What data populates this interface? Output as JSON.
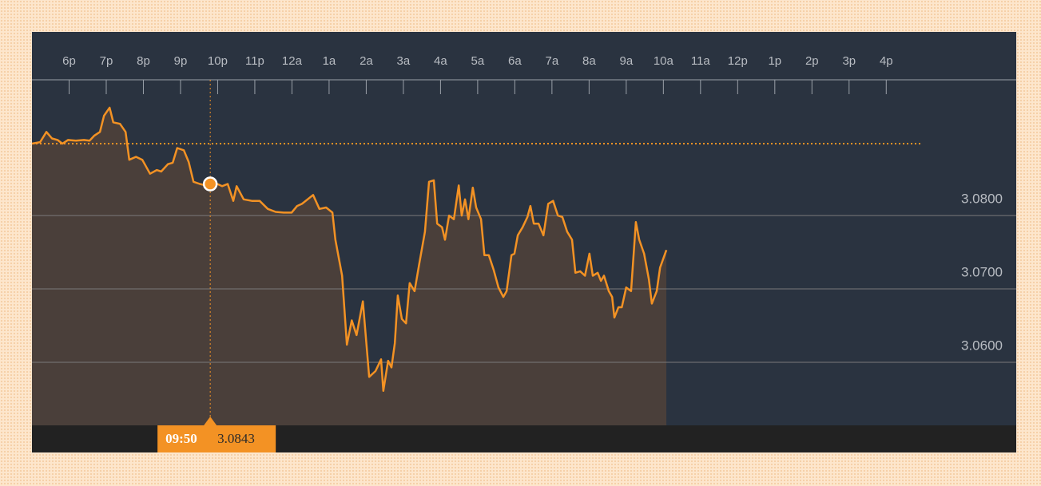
{
  "chart_data": {
    "type": "line",
    "color": "#f39224",
    "fill": "#4a3f3a",
    "xlim": [
      17,
      43.5
    ],
    "ylim": [
      3.0514,
      3.0985
    ],
    "xticks": [
      {
        "value": 18,
        "label": "6p"
      },
      {
        "value": 19,
        "label": "7p"
      },
      {
        "value": 20,
        "label": "8p"
      },
      {
        "value": 21,
        "label": "9p"
      },
      {
        "value": 22,
        "label": "10p"
      },
      {
        "value": 23,
        "label": "11p"
      },
      {
        "value": 24,
        "label": "12a"
      },
      {
        "value": 25,
        "label": "1a"
      },
      {
        "value": 26,
        "label": "2a"
      },
      {
        "value": 27,
        "label": "3a"
      },
      {
        "value": 28,
        "label": "4a"
      },
      {
        "value": 29,
        "label": "5a"
      },
      {
        "value": 30,
        "label": "6a"
      },
      {
        "value": 31,
        "label": "7a"
      },
      {
        "value": 32,
        "label": "8a"
      },
      {
        "value": 33,
        "label": "9a"
      },
      {
        "value": 34,
        "label": "10a"
      },
      {
        "value": 35,
        "label": "11a"
      },
      {
        "value": 36,
        "label": "12p"
      },
      {
        "value": 37,
        "label": "1p"
      },
      {
        "value": 38,
        "label": "2p"
      },
      {
        "value": 39,
        "label": "3p"
      },
      {
        "value": 40,
        "label": "4p"
      }
    ],
    "yticks": [
      {
        "value": 3.06,
        "label": "3.0600"
      },
      {
        "value": 3.07,
        "label": "3.0700"
      },
      {
        "value": 3.08,
        "label": "3.0800"
      }
    ],
    "reference_line": 3.0898,
    "highlight": {
      "label": "09:50",
      "x": 21.8,
      "value": 3.0843
    },
    "x": [
      17.0,
      17.22,
      17.39,
      17.54,
      17.69,
      17.82,
      17.97,
      18.18,
      18.4,
      18.55,
      18.68,
      18.83,
      18.94,
      19.09,
      19.19,
      19.37,
      19.52,
      19.62,
      19.8,
      19.97,
      20.18,
      20.36,
      20.48,
      20.66,
      20.79,
      20.91,
      21.09,
      21.22,
      21.35,
      21.52,
      21.69,
      21.8,
      21.95,
      22.12,
      22.27,
      22.42,
      22.51,
      22.7,
      22.92,
      23.13,
      23.35,
      23.56,
      23.78,
      23.99,
      24.14,
      24.27,
      24.42,
      24.57,
      24.74,
      24.92,
      25.09,
      25.17,
      25.35,
      25.48,
      25.61,
      25.74,
      25.91,
      26.08,
      26.25,
      26.4,
      26.46,
      26.59,
      26.68,
      26.77,
      26.85,
      26.96,
      27.07,
      27.17,
      27.3,
      27.43,
      27.58,
      27.69,
      27.82,
      27.91,
      28.04,
      28.12,
      28.23,
      28.36,
      28.49,
      28.57,
      28.66,
      28.75,
      28.87,
      28.96,
      29.09,
      29.18,
      29.3,
      29.43,
      29.56,
      29.69,
      29.78,
      29.91,
      29.99,
      30.08,
      30.21,
      30.34,
      30.42,
      30.51,
      30.64,
      30.77,
      30.9,
      31.03,
      31.16,
      31.28,
      31.41,
      31.54,
      31.63,
      31.76,
      31.89,
      32.01,
      32.1,
      32.23,
      32.32,
      32.4,
      32.53,
      32.62,
      32.68,
      32.79,
      32.88,
      33.0,
      33.13,
      33.26,
      33.35,
      33.48,
      33.61,
      33.69,
      33.82,
      33.91,
      34.08
    ],
    "values": [
      3.0898,
      3.09,
      3.0914,
      3.0905,
      3.0903,
      3.0898,
      3.0903,
      3.0902,
      3.0903,
      3.0902,
      3.0909,
      3.0914,
      3.0936,
      3.0947,
      3.0927,
      3.0925,
      3.0914,
      3.0876,
      3.088,
      3.0876,
      3.0857,
      3.0862,
      3.086,
      3.087,
      3.0872,
      3.0892,
      3.0889,
      3.0873,
      3.0846,
      3.0843,
      3.0841,
      3.0843,
      3.0844,
      3.084,
      3.0843,
      3.082,
      3.084,
      3.0822,
      3.082,
      3.082,
      3.0809,
      3.0805,
      3.0804,
      3.0804,
      3.0813,
      3.0816,
      3.0822,
      3.0828,
      3.0809,
      3.0811,
      3.0804,
      3.0767,
      3.0718,
      3.0624,
      3.0657,
      3.0637,
      3.0683,
      3.058,
      3.0588,
      3.0604,
      3.0561,
      3.0602,
      3.0593,
      3.0626,
      3.0691,
      3.0659,
      3.0653,
      3.0708,
      3.0697,
      3.0735,
      3.0778,
      3.0846,
      3.0848,
      3.0789,
      3.0784,
      3.0767,
      3.08,
      3.0795,
      3.0841,
      3.08,
      3.0822,
      3.0795,
      3.0838,
      3.0811,
      3.0795,
      3.0746,
      3.0746,
      3.0726,
      3.0702,
      3.0689,
      3.0697,
      3.0746,
      3.0748,
      3.0773,
      3.0784,
      3.0798,
      3.0813,
      3.0789,
      3.0789,
      3.0773,
      3.0816,
      3.082,
      3.08,
      3.0798,
      3.0778,
      3.0767,
      3.0722,
      3.0724,
      3.0718,
      3.0748,
      3.0718,
      3.0722,
      3.0711,
      3.0718,
      3.0697,
      3.0689,
      3.0661,
      3.0675,
      3.0675,
      3.0702,
      3.0697,
      3.0791,
      3.0767,
      3.0748,
      3.0713,
      3.068,
      3.0697,
      3.0729,
      3.0753
    ]
  }
}
